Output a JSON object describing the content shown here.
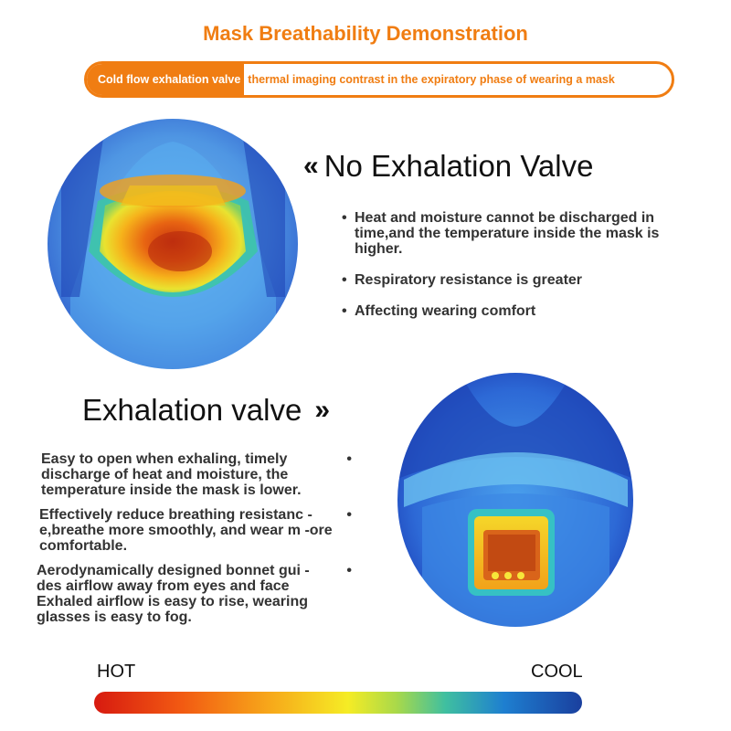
{
  "header": {
    "title": "Mask Breathability Demonstration",
    "banner_highlight": "Cold flow exhalation valve",
    "banner_text": "thermal imaging contrast in the expiratory phase of wearing a mask"
  },
  "no_valve": {
    "heading": "No Exhalation Valve",
    "chevron": "«",
    "bullets": [
      "Heat and moisture cannot be discharged in time,and the temperature inside the mask is higher.",
      "Respiratory resistance is greater",
      "Affecting wearing comfort"
    ]
  },
  "valve": {
    "heading": "Exhalation valve",
    "chevron": "»",
    "bullets": [
      "Easy to open when exhaling, timely discharge of heat and moisture, the temperature inside the mask is lower.",
      "Effectively reduce breathing resistanc -e,breathe more smoothly, and wear m -ore comfortable.",
      "Aerodynamically designed bonnet gui -des airflow away from eyes and face Exhaled airflow is easy to rise, wearing glasses is easy to fog."
    ],
    "bullet_symbol": "•"
  },
  "scale": {
    "hot_label": "HOT",
    "cool_label": "COOL",
    "colors": [
      "#d71a10",
      "#f7a81a",
      "#f5ec25",
      "#3fbfa0",
      "#1a3f9e"
    ]
  }
}
